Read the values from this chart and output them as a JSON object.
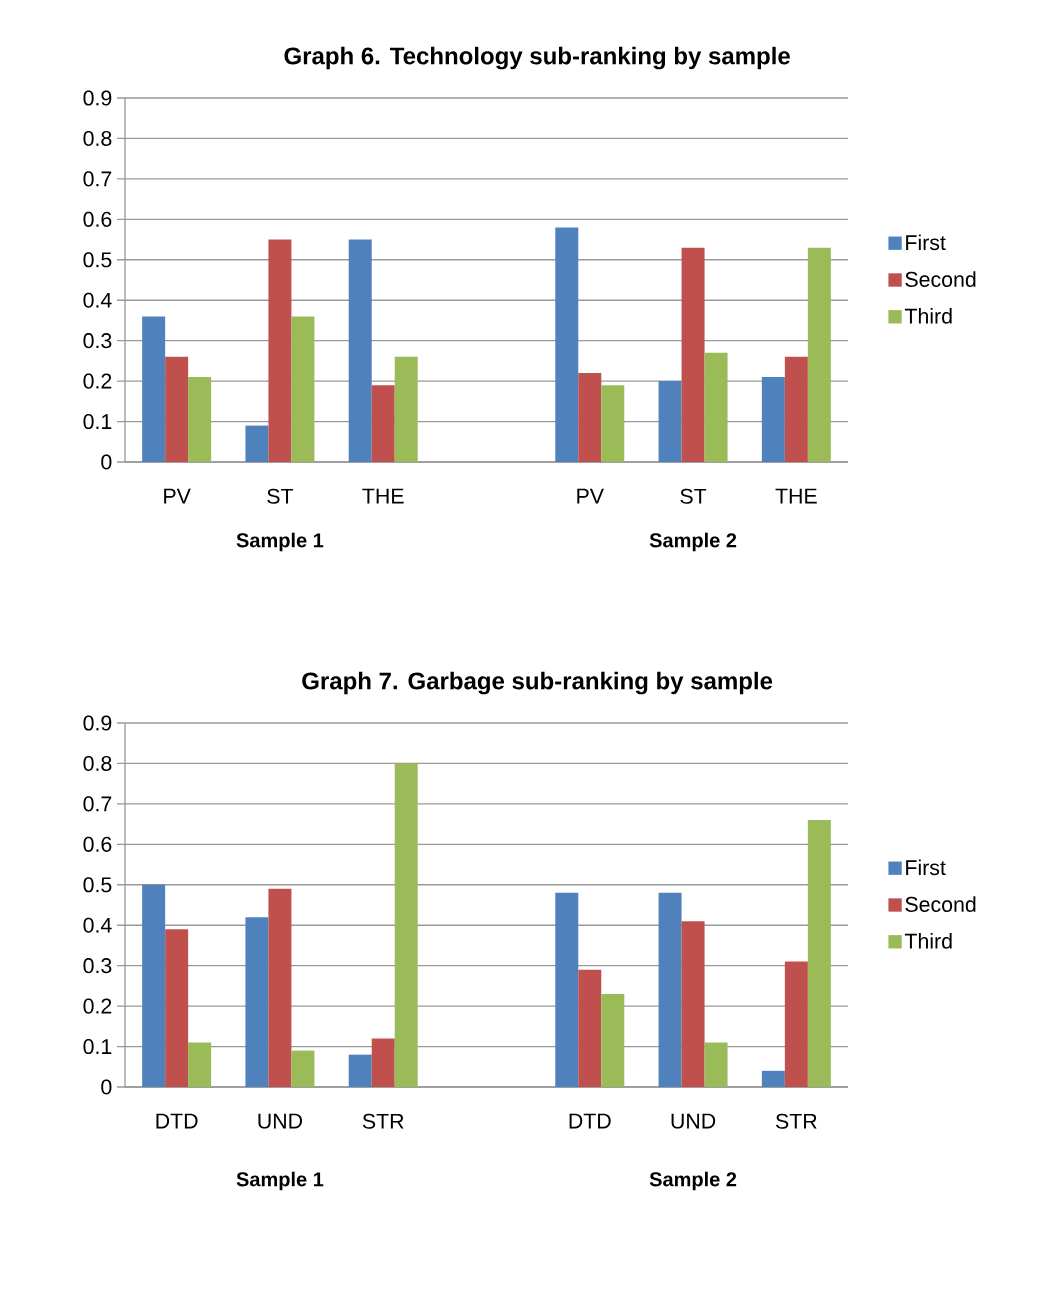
{
  "chart_data": [
    {
      "type": "bar",
      "title": "Graph 6. Technology sub-ranking by sample",
      "categories": [
        "PV",
        "ST",
        "THE",
        null,
        "PV",
        "ST",
        "THE"
      ],
      "series": [
        {
          "name": "First",
          "color": "#4f81bd",
          "values": [
            0.36,
            0.09,
            0.55,
            null,
            0.58,
            0.2,
            0.21
          ]
        },
        {
          "name": "Second",
          "color": "#c0504d",
          "values": [
            0.26,
            0.55,
            0.19,
            null,
            0.22,
            0.53,
            0.26
          ]
        },
        {
          "name": "Third",
          "color": "#9bbb59",
          "values": [
            0.21,
            0.36,
            0.26,
            null,
            0.19,
            0.27,
            0.53
          ]
        }
      ],
      "ylim": [
        0,
        0.9
      ],
      "yticks": [
        0,
        0.1,
        0.2,
        0.3,
        0.4,
        0.5,
        0.6,
        0.7,
        0.8,
        0.9
      ],
      "grid": "y",
      "legend": "right",
      "annotations": [
        "Sample 1",
        "Sample 2"
      ]
    },
    {
      "type": "bar",
      "title": "Graph 7. Garbage sub-ranking by sample",
      "categories": [
        "DTD",
        "UND",
        "STR",
        null,
        "DTD",
        "UND",
        "STR"
      ],
      "series": [
        {
          "name": "First",
          "color": "#4f81bd",
          "values": [
            0.5,
            0.42,
            0.08,
            null,
            0.48,
            0.48,
            0.04
          ]
        },
        {
          "name": "Second",
          "color": "#c0504d",
          "values": [
            0.39,
            0.49,
            0.12,
            null,
            0.29,
            0.41,
            0.31
          ]
        },
        {
          "name": "Third",
          "color": "#9bbb59",
          "values": [
            0.11,
            0.09,
            0.8,
            null,
            0.23,
            0.11,
            0.66
          ]
        }
      ],
      "ylim": [
        0,
        0.9
      ],
      "yticks": [
        0,
        0.1,
        0.2,
        0.3,
        0.4,
        0.5,
        0.6,
        0.7,
        0.8,
        0.9
      ],
      "grid": "y",
      "legend": "right",
      "annotations": [
        "Sample 1",
        "Sample 2"
      ]
    }
  ]
}
